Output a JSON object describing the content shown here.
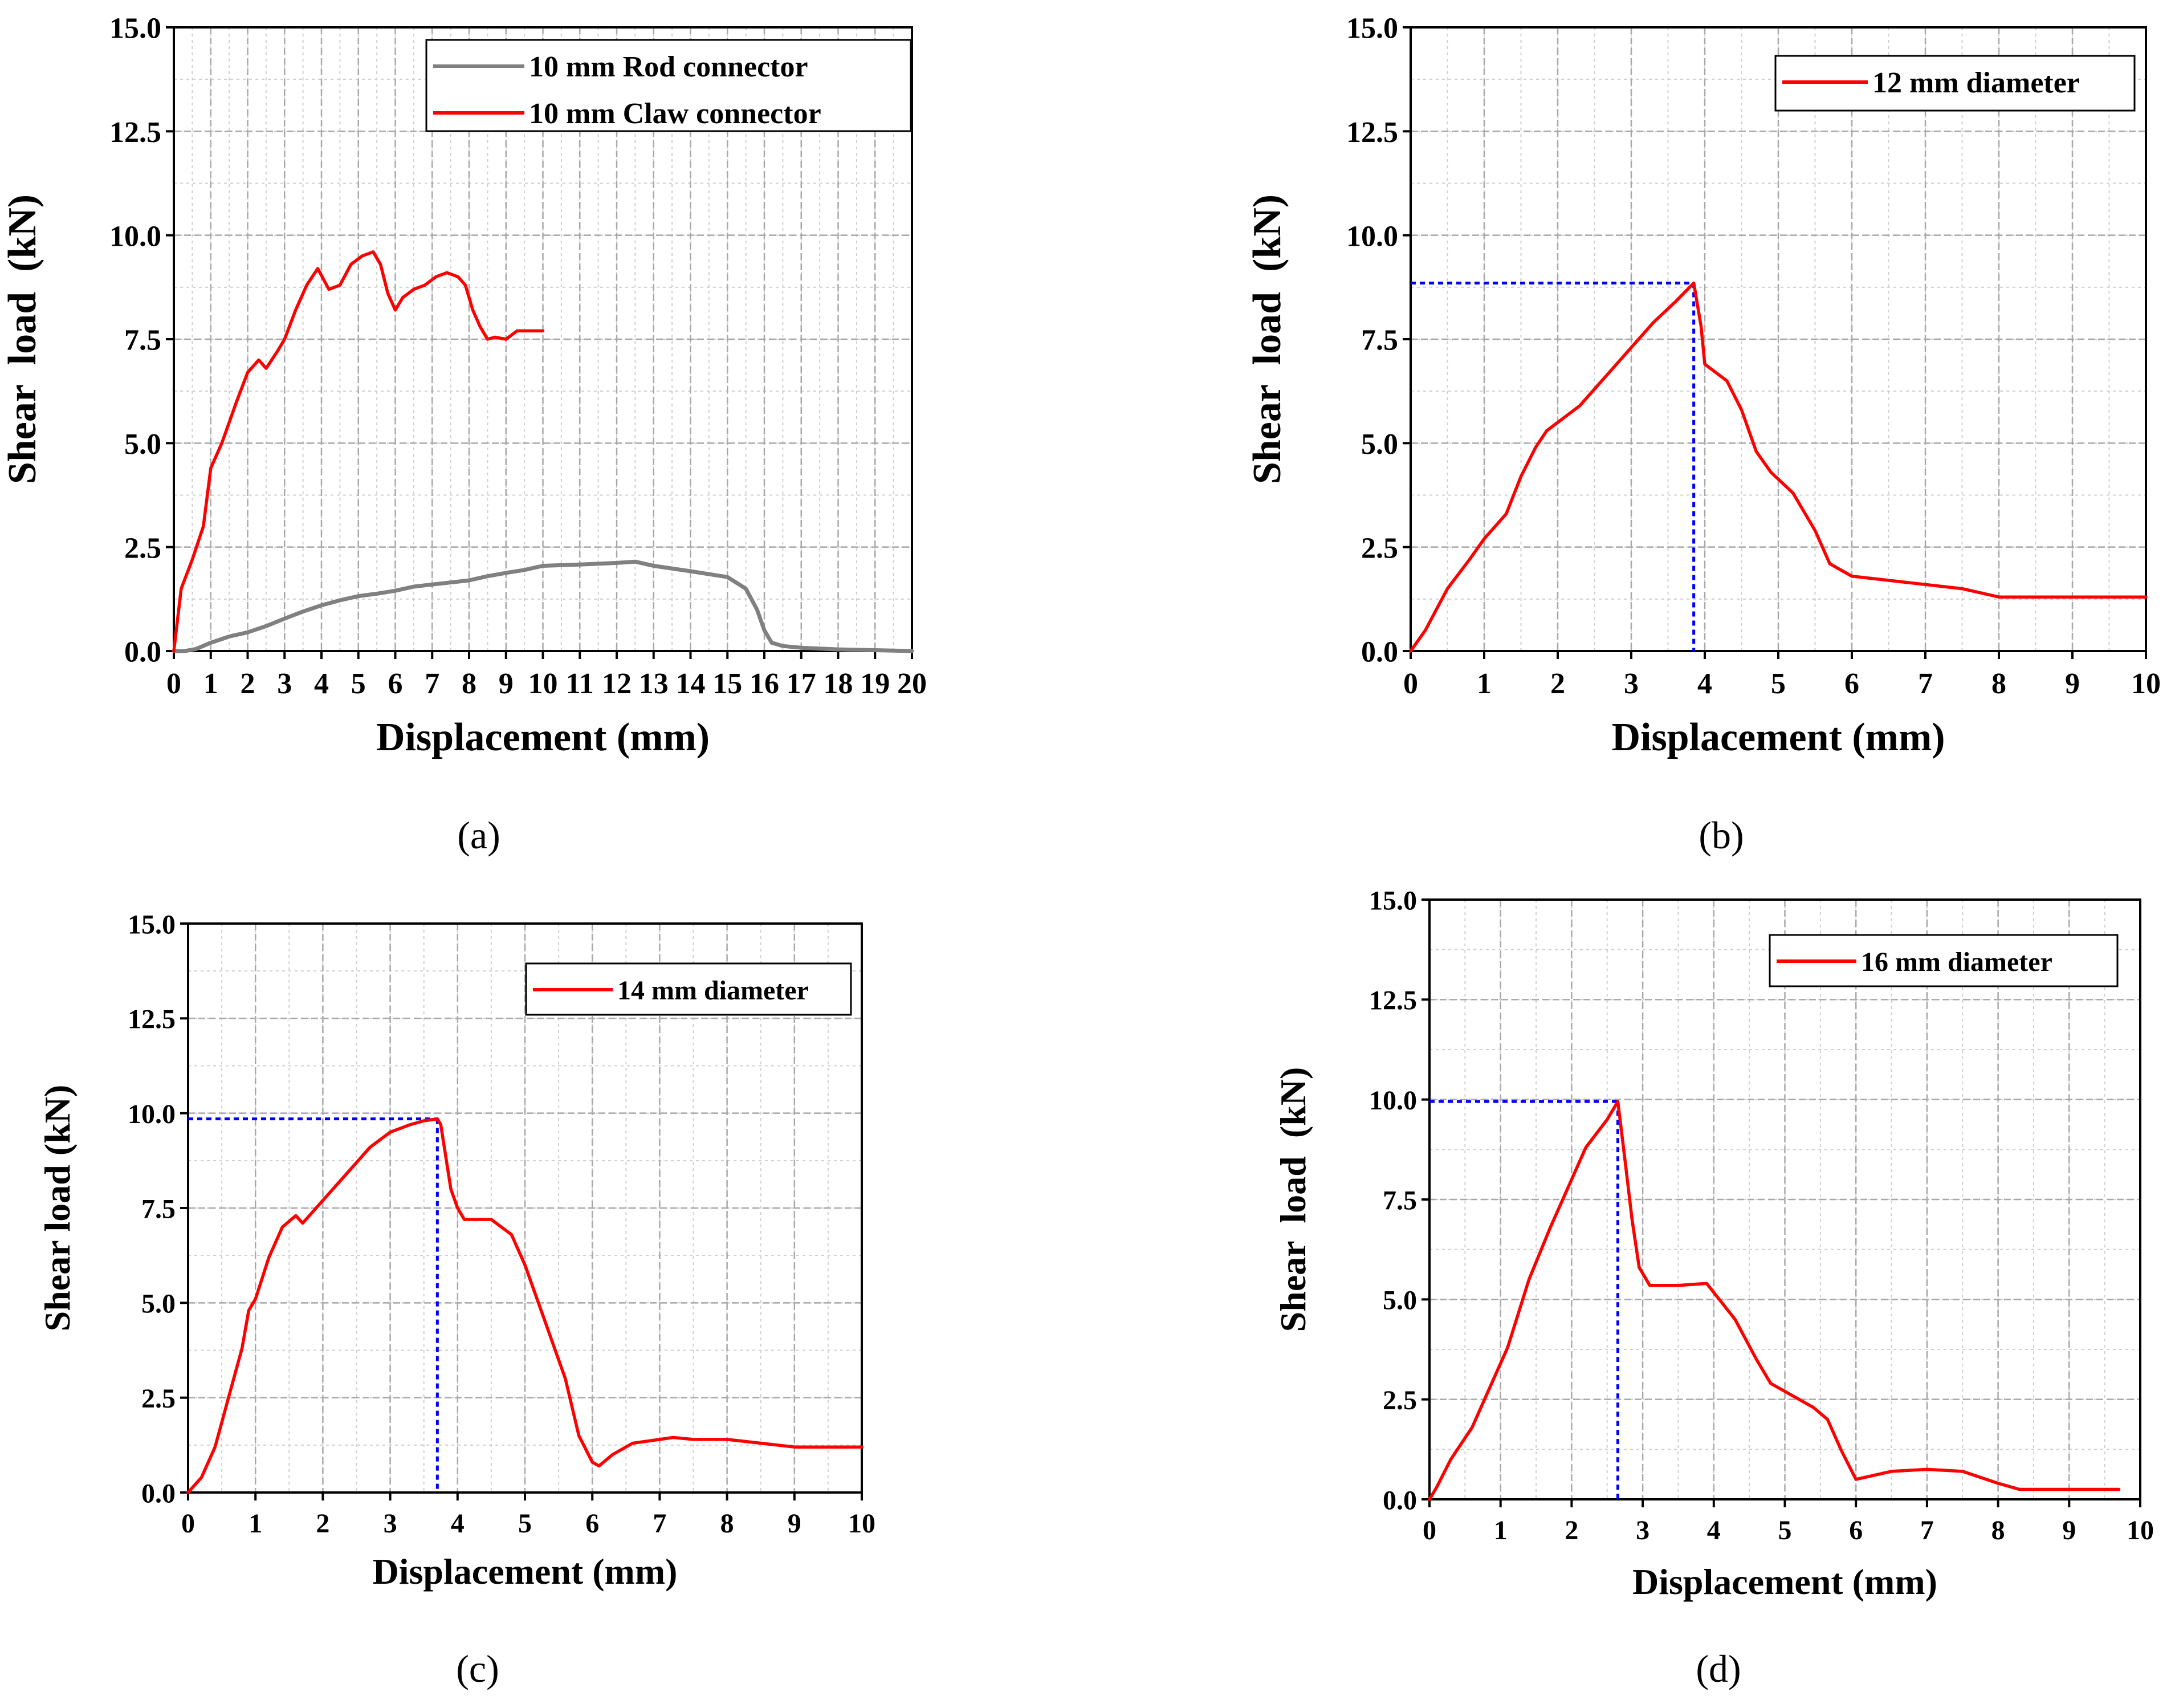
{
  "chart_data": [
    {
      "id": "a",
      "type": "line",
      "caption": "(a)",
      "xlabel": "Displacement (mm)",
      "ylabel": "Shear  load  (kN)",
      "xlim": [
        0,
        20
      ],
      "ylim": [
        0,
        15
      ],
      "xticks": [
        0,
        1,
        2,
        3,
        4,
        5,
        6,
        7,
        8,
        9,
        10,
        11,
        12,
        13,
        14,
        15,
        16,
        17,
        18,
        19,
        20
      ],
      "xtick_labels": [
        "0",
        "1",
        "2",
        "3",
        "4",
        "5",
        "6",
        "7",
        "8",
        "9",
        "10",
        "11",
        "12",
        "13",
        "14",
        "15",
        "16",
        "17",
        "18",
        "19",
        "20"
      ],
      "yticks": [
        0,
        2.5,
        5,
        7.5,
        10,
        12.5,
        15
      ],
      "ytick_labels": [
        "0.0",
        "2.5",
        "5.0",
        "7.5",
        "10.0",
        "12.5",
        "15.0"
      ],
      "legend_position": "top-right",
      "series": [
        {
          "name": "10 mm Rod connector",
          "color": "#808080",
          "x": [
            0,
            0.3,
            0.6,
            1.0,
            1.5,
            2.0,
            2.5,
            3.0,
            3.5,
            4.0,
            4.5,
            5.0,
            5.5,
            6.0,
            6.5,
            7.0,
            7.5,
            8.0,
            8.5,
            9.0,
            9.5,
            10.0,
            11.0,
            12.0,
            12.5,
            13.0,
            14.0,
            15.0,
            15.5,
            15.8,
            16.0,
            16.2,
            16.5,
            17.0,
            18.0,
            19.0,
            20.0
          ],
          "y": [
            0,
            0,
            0.05,
            0.2,
            0.35,
            0.45,
            0.6,
            0.78,
            0.95,
            1.1,
            1.22,
            1.32,
            1.38,
            1.45,
            1.55,
            1.6,
            1.65,
            1.7,
            1.8,
            1.88,
            1.95,
            2.05,
            2.08,
            2.12,
            2.15,
            2.05,
            1.92,
            1.78,
            1.5,
            1.0,
            0.5,
            0.2,
            0.12,
            0.08,
            0.04,
            0.02,
            0.0
          ]
        },
        {
          "name": "10 mm Claw connector",
          "color": "#ff0000",
          "x": [
            0,
            0.2,
            0.5,
            0.8,
            1.0,
            1.3,
            1.7,
            2.0,
            2.3,
            2.5,
            2.8,
            3.0,
            3.3,
            3.6,
            3.9,
            4.2,
            4.5,
            4.8,
            5.1,
            5.4,
            5.6,
            5.8,
            6.0,
            6.2,
            6.5,
            6.8,
            7.1,
            7.4,
            7.7,
            7.9,
            8.1,
            8.3,
            8.5,
            8.7,
            9.0,
            9.3,
            9.6,
            10.0
          ],
          "y": [
            0,
            1.5,
            2.2,
            3.0,
            4.4,
            5.0,
            6.0,
            6.7,
            7.0,
            6.8,
            7.2,
            7.5,
            8.2,
            8.8,
            9.2,
            8.7,
            8.8,
            9.3,
            9.5,
            9.6,
            9.3,
            8.6,
            8.2,
            8.5,
            8.7,
            8.8,
            9.0,
            9.1,
            9.0,
            8.8,
            8.2,
            7.8,
            7.5,
            7.55,
            7.5,
            7.7,
            7.7,
            7.7
          ]
        }
      ],
      "guides": []
    },
    {
      "id": "b",
      "type": "line",
      "caption": "(b)",
      "xlabel": "Displacement (mm)",
      "ylabel": "Shear  load  (kN)",
      "xlim": [
        0,
        10
      ],
      "ylim": [
        0,
        15
      ],
      "xticks": [
        0,
        1,
        2,
        3,
        4,
        5,
        6,
        7,
        8,
        9,
        10
      ],
      "xtick_labels": [
        "0",
        "1",
        "2",
        "3",
        "4",
        "5",
        "6",
        "7",
        "8",
        "9",
        "10"
      ],
      "yticks": [
        0,
        2.5,
        5,
        7.5,
        10,
        12.5,
        15
      ],
      "ytick_labels": [
        "0.0",
        "2.5",
        "5.0",
        "7.5",
        "10.0",
        "12.5",
        "15.0"
      ],
      "legend_position": "top-right",
      "series": [
        {
          "name": "12 mm diameter",
          "color": "#ff0000",
          "x": [
            0,
            0.2,
            0.5,
            0.8,
            1.0,
            1.3,
            1.5,
            1.7,
            1.85,
            2.0,
            2.3,
            2.6,
            3.0,
            3.3,
            3.6,
            3.85,
            3.95,
            4.0,
            4.3,
            4.5,
            4.7,
            4.9,
            5.2,
            5.5,
            5.7,
            6.0,
            6.5,
            7.0,
            7.5,
            8.0,
            9.0,
            10.0
          ],
          "y": [
            0,
            0.5,
            1.5,
            2.2,
            2.7,
            3.3,
            4.2,
            4.9,
            5.3,
            5.5,
            5.9,
            6.5,
            7.3,
            7.9,
            8.4,
            8.85,
            7.8,
            6.9,
            6.5,
            5.8,
            4.8,
            4.3,
            3.8,
            2.9,
            2.1,
            1.8,
            1.7,
            1.6,
            1.5,
            1.3,
            1.3,
            1.3
          ]
        }
      ],
      "guides": [
        {
          "x": 3.85,
          "y": 8.85,
          "color": "#0000ff"
        }
      ]
    },
    {
      "id": "c",
      "type": "line",
      "caption": "(c)",
      "xlabel": "Displacement (mm)",
      "ylabel": "Shear load (kN)",
      "xlim": [
        0,
        10
      ],
      "ylim": [
        0,
        15
      ],
      "xticks": [
        0,
        1,
        2,
        3,
        4,
        5,
        6,
        7,
        8,
        9,
        10
      ],
      "xtick_labels": [
        "0",
        "1",
        "2",
        "3",
        "4",
        "5",
        "6",
        "7",
        "8",
        "9",
        "10"
      ],
      "yticks": [
        0,
        2.5,
        5,
        7.5,
        10,
        12.5,
        15
      ],
      "ytick_labels": [
        "0.0",
        "2.5",
        "5.0",
        "7.5",
        "10.0",
        "12.5",
        "15.0"
      ],
      "legend_position": "top-right",
      "series": [
        {
          "name": "14 mm diameter",
          "color": "#ff0000",
          "x": [
            0,
            0.2,
            0.4,
            0.6,
            0.8,
            0.9,
            1.0,
            1.2,
            1.4,
            1.6,
            1.7,
            1.8,
            2.0,
            2.4,
            2.7,
            3.0,
            3.3,
            3.5,
            3.7,
            3.75,
            3.9,
            4.0,
            4.1,
            4.5,
            4.8,
            5.0,
            5.3,
            5.6,
            5.8,
            6.0,
            6.1,
            6.3,
            6.6,
            7.0,
            7.2,
            7.5,
            8.0,
            8.5,
            9.0,
            10.0
          ],
          "y": [
            0,
            0.4,
            1.2,
            2.5,
            3.8,
            4.8,
            5.1,
            6.2,
            7.0,
            7.3,
            7.1,
            7.3,
            7.7,
            8.5,
            9.1,
            9.5,
            9.7,
            9.8,
            9.85,
            9.7,
            8.0,
            7.5,
            7.2,
            7.2,
            6.8,
            6.0,
            4.5,
            3.0,
            1.5,
            0.8,
            0.7,
            1.0,
            1.3,
            1.4,
            1.45,
            1.4,
            1.4,
            1.3,
            1.2,
            1.2
          ]
        }
      ],
      "guides": [
        {
          "x": 3.7,
          "y": 9.85,
          "color": "#0000ff"
        }
      ]
    },
    {
      "id": "d",
      "type": "line",
      "caption": "(d)",
      "xlabel": "Displacement (mm)",
      "ylabel": "Shear  load  (kN)",
      "xlim": [
        0,
        10
      ],
      "ylim": [
        0,
        15
      ],
      "xticks": [
        0,
        1,
        2,
        3,
        4,
        5,
        6,
        7,
        8,
        9,
        10
      ],
      "xtick_labels": [
        "0",
        "1",
        "2",
        "3",
        "4",
        "5",
        "6",
        "7",
        "8",
        "9",
        "10"
      ],
      "yticks": [
        0,
        2.5,
        5,
        7.5,
        10,
        12.5,
        15
      ],
      "ytick_labels": [
        "0.0",
        "2.5",
        "5.0",
        "7.5",
        "10.0",
        "12.5",
        "15.0"
      ],
      "legend_position": "top-right",
      "series": [
        {
          "name": "16 mm diameter",
          "color": "#ff0000",
          "x": [
            0,
            0.1,
            0.3,
            0.6,
            0.9,
            1.1,
            1.4,
            1.7,
            2.0,
            2.2,
            2.5,
            2.65,
            2.75,
            2.85,
            2.95,
            3.1,
            3.5,
            3.9,
            4.3,
            4.6,
            4.8,
            5.0,
            5.4,
            5.6,
            5.8,
            6.0,
            6.5,
            7.0,
            7.5,
            8.0,
            8.3,
            9.0,
            9.7
          ],
          "y": [
            0,
            0.3,
            1.0,
            1.8,
            3.0,
            3.8,
            5.5,
            6.8,
            8.0,
            8.8,
            9.5,
            9.95,
            8.5,
            7.0,
            5.8,
            5.35,
            5.35,
            5.4,
            4.5,
            3.5,
            2.9,
            2.7,
            2.3,
            2.0,
            1.2,
            0.5,
            0.7,
            0.75,
            0.7,
            0.4,
            0.25,
            0.25,
            0.25
          ]
        }
      ],
      "guides": [
        {
          "x": 2.65,
          "y": 9.95,
          "color": "#0000ff"
        }
      ]
    }
  ]
}
